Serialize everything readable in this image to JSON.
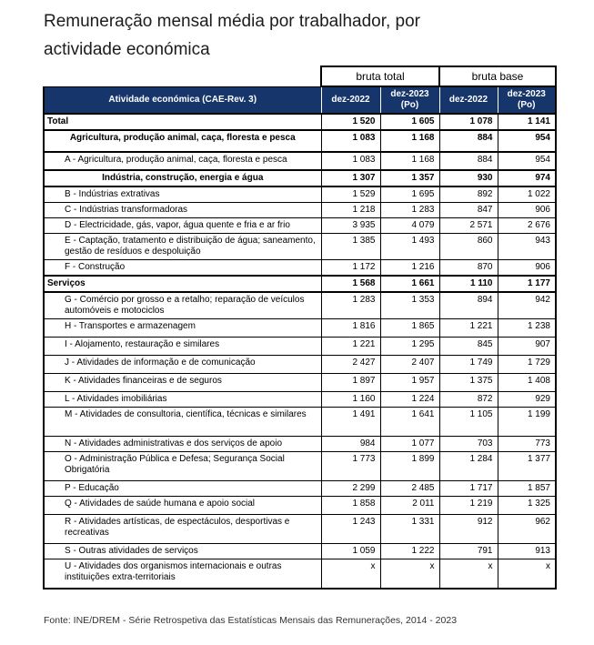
{
  "title": {
    "line1": "Remuneração mensal média por trabalhador, por",
    "line2": "actividade económica"
  },
  "table": {
    "col_groups": [
      {
        "label": "bruta total"
      },
      {
        "label": "bruta base"
      }
    ],
    "header": {
      "activity": "Atividade económica  (CAE-Rev. 3)",
      "sub": [
        "dez-2022",
        "dez-2023 (Po)",
        "dez-2022",
        "dez-2023 (Po)"
      ]
    },
    "rows": [
      {
        "label": "Total",
        "style": "total",
        "values": [
          "1 520",
          "1 605",
          "1 078",
          "1 141"
        ]
      },
      {
        "label": "Agricultura, produção animal, caça, floresta e pesca",
        "style": "section",
        "values": [
          "1 083",
          "1 168",
          "884",
          "954"
        ]
      },
      {
        "label": "A - Agricultura, produção animal, caça, floresta e pesca",
        "style": "item",
        "values": [
          "1 083",
          "1 168",
          "884",
          "954"
        ]
      },
      {
        "label": "Indústria, construção, energia e água",
        "style": "section",
        "values": [
          "1 307",
          "1 357",
          "930",
          "974"
        ]
      },
      {
        "label": "B - Indústrias extrativas",
        "style": "item",
        "values": [
          "1 529",
          "1 695",
          "892",
          "1 022"
        ]
      },
      {
        "label": "C - Indústrias transformadoras",
        "style": "item",
        "values": [
          "1 218",
          "1 283",
          "847",
          "906"
        ]
      },
      {
        "label": "D - Electricidade, gás, vapor, água quente e fria e ar frio",
        "style": "item",
        "values": [
          "3 935",
          "4 079",
          "2 571",
          "2 676"
        ]
      },
      {
        "label": "E - Captação, tratamento e distribuição de água; saneamento, gestão de resíduos e despoluição",
        "style": "item",
        "values": [
          "1 385",
          "1 493",
          "860",
          "943"
        ]
      },
      {
        "label": "F - Construção",
        "style": "item",
        "values": [
          "1 172",
          "1 216",
          "870",
          "906"
        ]
      },
      {
        "label": "Serviços",
        "style": "total",
        "values": [
          "1 568",
          "1 661",
          "1 110",
          "1 177"
        ]
      },
      {
        "label": "G - Comércio por grosso e a retalho; reparação de veículos automóveis e motociclos",
        "style": "item",
        "values": [
          "1 283",
          "1 353",
          "894",
          "942"
        ]
      },
      {
        "label": "H - Transportes e armazenagem",
        "style": "item",
        "values": [
          "1 816",
          "1 865",
          "1 221",
          "1 238"
        ]
      },
      {
        "label": "I - Alojamento, restauração e similares",
        "style": "item",
        "values": [
          "1 221",
          "1 295",
          "845",
          "907"
        ]
      },
      {
        "label": "J - Atividades de informação e de comunicação",
        "style": "item",
        "values": [
          "2 427",
          "2 407",
          "1 749",
          "1 729"
        ]
      },
      {
        "label": "K - Atividades financeiras e de seguros",
        "style": "item",
        "values": [
          "1 897",
          "1 957",
          "1 375",
          "1 408"
        ]
      },
      {
        "label": "L - Atividades imobiliárias",
        "style": "item",
        "values": [
          "1 160",
          "1 224",
          "872",
          "929"
        ]
      },
      {
        "label": "M - Atividades de consultoria, científica, técnicas e similares",
        "style": "item",
        "values": [
          "1 491",
          "1 641",
          "1 105",
          "1 199"
        ]
      },
      {
        "label": "N - Atividades administrativas e dos serviços de apoio",
        "style": "item",
        "values": [
          "984",
          "1 077",
          "703",
          "773"
        ]
      },
      {
        "label": "O - Administração Pública e Defesa; Segurança Social Obrigatória",
        "style": "item",
        "values": [
          "1 773",
          "1 899",
          "1 284",
          "1 377"
        ]
      },
      {
        "label": "P - Educação",
        "style": "item",
        "values": [
          "2 299",
          "2 485",
          "1 717",
          "1 857"
        ]
      },
      {
        "label": "Q - Atividades de saúde humana e apoio social",
        "style": "item",
        "values": [
          "1 858",
          "2 011",
          "1 219",
          "1 325"
        ]
      },
      {
        "label": "R - Atividades artísticas, de espectáculos, desportivas e recreativas",
        "style": "item",
        "values": [
          "1 243",
          "1 331",
          "912",
          "962"
        ]
      },
      {
        "label": "S - Outras atividades de serviços",
        "style": "item",
        "values": [
          "1 059",
          "1 222",
          "791",
          "913"
        ]
      },
      {
        "label": "U - Atividades dos organismos internacionais e outras instituições extra-territoriais",
        "style": "item",
        "values": [
          "x",
          "x",
          "x",
          "x"
        ]
      }
    ]
  },
  "footer": {
    "source": "Fonte: INE/DREM - Série Retrospetiva das Estatísticas Mensais das Remunerações, 2014 - 2023"
  },
  "colors": {
    "header_bg": "#16366B",
    "header_text": "#ffffff",
    "border": "#000000",
    "title_text": "#1c1c1c"
  }
}
